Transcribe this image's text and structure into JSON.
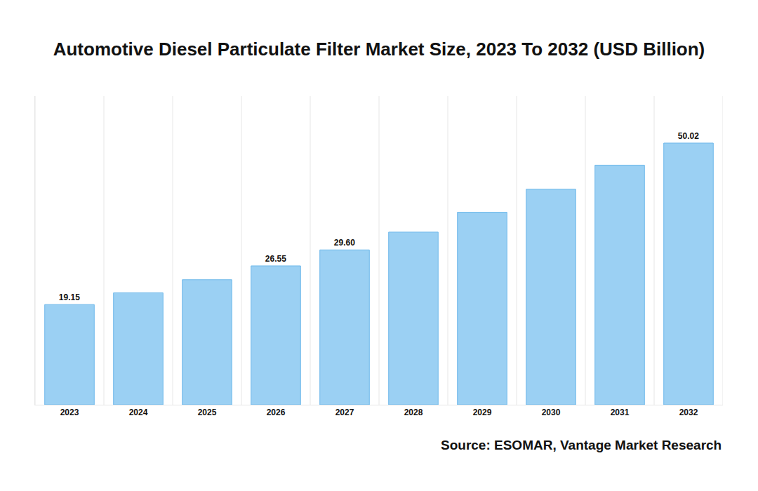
{
  "chart_data": {
    "type": "bar",
    "title": "Automotive Diesel Particulate Filter Market Size, 2023 To 2032 (USD Billion)",
    "categories": [
      "2023",
      "2024",
      "2025",
      "2026",
      "2027",
      "2028",
      "2029",
      "2030",
      "2031",
      "2032"
    ],
    "values": [
      19.15,
      21.4,
      23.9,
      26.55,
      29.6,
      33.0,
      36.8,
      41.2,
      45.8,
      50.02
    ],
    "value_labels": [
      "19.15",
      null,
      null,
      "26.55",
      "29.60",
      null,
      null,
      null,
      null,
      "50.02"
    ],
    "data_labels": true,
    "color": "#9bd0f3",
    "ylim": [
      0,
      59
    ],
    "grid": true,
    "tick_labels": "x",
    "source": "Source: ESOMAR, Vantage Market Research"
  }
}
